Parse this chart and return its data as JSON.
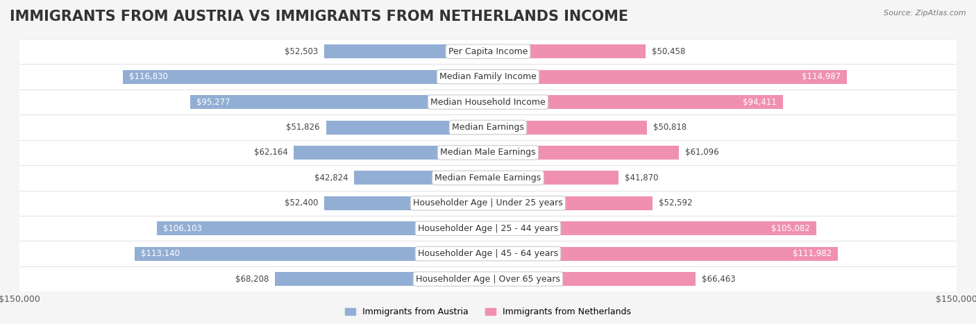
{
  "title": "IMMIGRANTS FROM AUSTRIA VS IMMIGRANTS FROM NETHERLANDS INCOME",
  "source": "Source: ZipAtlas.com",
  "categories": [
    "Per Capita Income",
    "Median Family Income",
    "Median Household Income",
    "Median Earnings",
    "Median Male Earnings",
    "Median Female Earnings",
    "Householder Age | Under 25 years",
    "Householder Age | 25 - 44 years",
    "Householder Age | 45 - 64 years",
    "Householder Age | Over 65 years"
  ],
  "austria_values": [
    52503,
    116830,
    95277,
    51826,
    62164,
    42824,
    52400,
    106103,
    113140,
    68208
  ],
  "netherlands_values": [
    50458,
    114987,
    94411,
    50818,
    61096,
    41870,
    52592,
    105082,
    111982,
    66463
  ],
  "austria_color": "#92aed4",
  "netherlands_color": "#f090b0",
  "austria_label": "Immigrants from Austria",
  "netherlands_label": "Immigrants from Netherlands",
  "max_value": 150000,
  "background_color": "#f5f5f5",
  "row_bg_color": "#ffffff",
  "title_fontsize": 15,
  "label_fontsize": 9,
  "value_fontsize": 8.5,
  "legend_fontsize": 9
}
